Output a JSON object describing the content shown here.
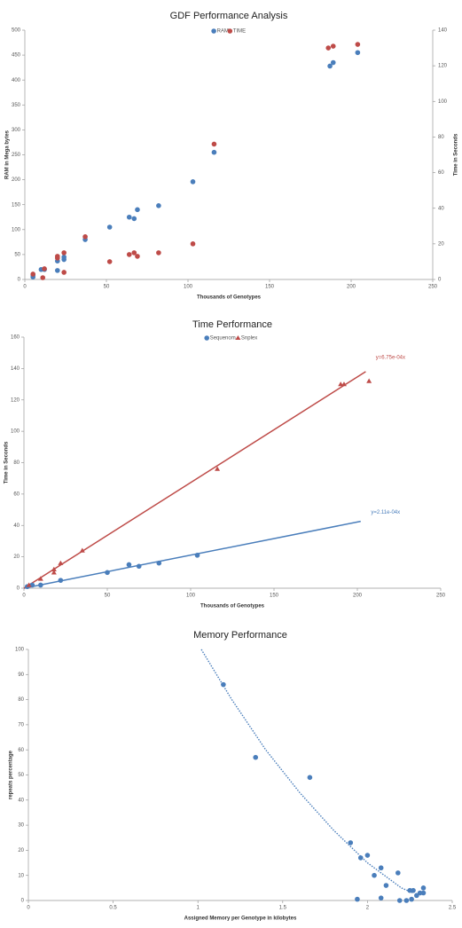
{
  "chart_data": [
    {
      "type": "scatter",
      "title": "GDF Performance Analysis",
      "x_label": "Thousands  of Genotypes",
      "y_label": "RAM in  Mega bytes",
      "y2_label": "Time in  Seconds",
      "xlim": [
        0,
        250
      ],
      "xticks": [
        0,
        50,
        100,
        150,
        200,
        250
      ],
      "ylim": [
        0,
        500
      ],
      "yticks": [
        0,
        50,
        100,
        150,
        200,
        250,
        300,
        350,
        400,
        450,
        500
      ],
      "y2lim": [
        0,
        140
      ],
      "y2ticks": [
        0,
        20,
        40,
        60,
        80,
        100,
        120,
        140
      ],
      "legend": "top",
      "grid": false,
      "series": [
        {
          "name": "RAM",
          "color": "#4a7ebb",
          "marker": "circle",
          "x": [
            5,
            5,
            10,
            12,
            20,
            20,
            24,
            24,
            37,
            52,
            64,
            67,
            69,
            82,
            103,
            116,
            187,
            189,
            204
          ],
          "values": [
            5,
            9,
            20,
            20,
            18,
            37,
            40,
            45,
            80,
            105,
            125,
            122,
            140,
            148,
            196,
            255,
            428,
            435,
            455
          ]
        },
        {
          "name": "TIME",
          "color": "#be4b48",
          "marker": "circle",
          "axis": "y2",
          "x": [
            5,
            11,
            12,
            20,
            20,
            24,
            24,
            37,
            52,
            64,
            67,
            69,
            82,
            103,
            116,
            186,
            189,
            204
          ],
          "values": [
            3,
            1,
            6,
            12,
            13,
            4,
            15,
            24,
            10,
            14,
            15,
            13,
            15,
            20,
            76,
            130,
            131,
            132
          ]
        }
      ]
    },
    {
      "type": "scatter",
      "title": "Time Performance",
      "x_label": "Thousands  of Genotypes",
      "y_label": "Time in  Seconds",
      "xlim": [
        0,
        250
      ],
      "xticks": [
        0,
        50,
        100,
        150,
        200,
        250
      ],
      "ylim": [
        0,
        160
      ],
      "yticks": [
        0,
        20,
        40,
        60,
        80,
        100,
        120,
        140,
        160
      ],
      "legend": "top",
      "grid": false,
      "series": [
        {
          "name": "Sequenom",
          "color": "#4a7ebb",
          "marker": "circle",
          "x": [
            2,
            5,
            10,
            22,
            50,
            63,
            69,
            81,
            104
          ],
          "values": [
            1,
            2,
            2,
            5,
            10,
            15,
            14,
            16,
            21
          ],
          "trend": {
            "x": [
              0,
              202
            ],
            "y": [
              0,
              42.6
            ],
            "label": "y=2.11e-04x"
          }
        },
        {
          "name": "Snplex",
          "color": "#be4b48",
          "marker": "triangle",
          "x": [
            3,
            10,
            18,
            18,
            22,
            35,
            116,
            190,
            192,
            207
          ],
          "values": [
            2,
            6,
            12,
            10,
            16,
            24,
            76,
            130,
            130,
            132
          ],
          "trend": {
            "x": [
              0,
              205
            ],
            "y": [
              0,
              138
            ],
            "label": "y=6.75e-04x"
          }
        }
      ]
    },
    {
      "type": "scatter",
      "title": "Memory Performance",
      "x_label": "Assigned Memory per Genotype in  kilobytes",
      "y_label": "repeats  percentage",
      "xlim": [
        0,
        2.5
      ],
      "xticks": [
        0,
        0.5,
        1,
        1.5,
        2,
        2.5
      ],
      "ylim": [
        0,
        100
      ],
      "yticks": [
        0,
        10,
        20,
        30,
        40,
        50,
        60,
        70,
        80,
        90,
        100
      ],
      "grid": false,
      "series": [
        {
          "color": "#4a7ebb",
          "marker": "circle",
          "x": [
            1.15,
            1.34,
            1.66,
            1.9,
            1.96,
            2.0,
            2.04,
            2.08,
            2.11,
            2.18,
            1.94,
            2.08,
            2.19,
            2.23,
            2.25,
            2.27,
            2.26,
            2.29,
            2.31,
            2.33,
            2.33
          ],
          "values": [
            86,
            57,
            49,
            23,
            17,
            18,
            10,
            13,
            6,
            11,
            0.5,
            1,
            0,
            0,
            4,
            4,
            0.5,
            2,
            3,
            3,
            5
          ],
          "trend": {
            "x": [
              1.02,
              1.2,
              1.4,
              1.6,
              1.8,
              2.0,
              2.2,
              2.27
            ],
            "y": [
              100,
              80,
              60,
              43,
              28,
              15,
              5,
              3
            ],
            "dotted": true
          }
        }
      ]
    }
  ]
}
